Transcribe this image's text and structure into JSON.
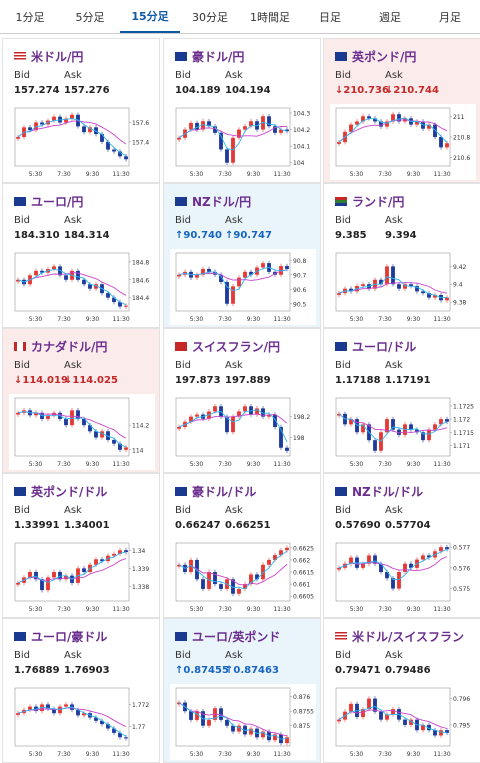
{
  "tabs": [
    {
      "label": "1分足",
      "active": false
    },
    {
      "label": "5分足",
      "active": false
    },
    {
      "label": "15分足",
      "active": true
    },
    {
      "label": "30分足",
      "active": false
    },
    {
      "label": "1時間足",
      "active": false
    },
    {
      "label": "日足",
      "active": false
    },
    {
      "label": "週足",
      "active": false
    },
    {
      "label": "月足",
      "active": false
    }
  ],
  "labels": {
    "bid": "Bid",
    "ask": "Ask"
  },
  "colors": {
    "bull": "#e53935",
    "bear": "#1e3a9c",
    "avg": "#cc44cc",
    "short": "#29b6f6",
    "up_bg": "#eaf4fb",
    "down_bg": "#fbeceb"
  },
  "cards": [
    {
      "pair": "米ドル/円",
      "flag": "us-flag-icon",
      "bid": "157.274",
      "ask": "157.276",
      "trend": "none",
      "chart_data": {
        "type": "candlestick",
        "x_ticks": [
          "5:30",
          "7:30",
          "9:30",
          "11:30"
        ],
        "y_ticks": [
          "157.6",
          "157.4"
        ],
        "ylim": [
          157.15,
          157.75
        ],
        "path": [
          157.45,
          157.55,
          157.52,
          157.6,
          157.58,
          157.62,
          157.66,
          157.6,
          157.64,
          157.68,
          157.56,
          157.5,
          157.55,
          157.48,
          157.4,
          157.32,
          157.3,
          157.25,
          157.22
        ]
      }
    },
    {
      "pair": "豪ドル/円",
      "flag": "au-flag-icon",
      "bid": "104.189",
      "ask": "104.194",
      "trend": "none",
      "chart_data": {
        "type": "candlestick",
        "x_ticks": [
          "5:30",
          "7:30",
          "9:30",
          "11:30"
        ],
        "y_ticks": [
          "104.3",
          "104.2",
          "104.1",
          "104"
        ],
        "ylim": [
          103.98,
          104.33
        ],
        "path": [
          104.15,
          104.2,
          104.24,
          104.2,
          104.25,
          104.22,
          104.18,
          104.08,
          104.0,
          104.15,
          104.2,
          104.22,
          104.25,
          104.2,
          104.28,
          104.22,
          104.18,
          104.2,
          104.19
        ]
      }
    },
    {
      "pair": "英ポンド/円",
      "flag": "gb-flag-icon",
      "bid": "↓210.736",
      "ask": "↓210.744",
      "trend": "down",
      "chart_data": {
        "type": "candlestick",
        "x_ticks": [
          "5:30",
          "7:30",
          "9:30",
          "11:30"
        ],
        "y_ticks": [
          "211",
          "210.8",
          "210.6"
        ],
        "ylim": [
          210.52,
          211.08
        ],
        "path": [
          210.75,
          210.85,
          210.92,
          210.95,
          211.0,
          210.98,
          210.95,
          210.9,
          210.95,
          211.02,
          210.95,
          210.98,
          210.92,
          210.95,
          210.88,
          210.92,
          210.8,
          210.7,
          210.74
        ]
      }
    },
    {
      "pair": "ユーロ/円",
      "flag": "eu-flag-icon",
      "bid": "184.310",
      "ask": "184.314",
      "trend": "none",
      "chart_data": {
        "type": "candlestick",
        "x_ticks": [
          "5:30",
          "7:30",
          "9:30",
          "11:30"
        ],
        "y_ticks": [
          "184.8",
          "184.6",
          "184.4"
        ],
        "ylim": [
          184.25,
          184.9
        ],
        "path": [
          184.6,
          184.55,
          184.65,
          184.7,
          184.68,
          184.72,
          184.75,
          184.65,
          184.6,
          184.7,
          184.6,
          184.55,
          184.5,
          184.55,
          184.45,
          184.4,
          184.35,
          184.3,
          184.31
        ]
      }
    },
    {
      "pair": "NZドル/円",
      "flag": "nz-flag-icon",
      "bid": "↑90.740",
      "ask": "↑90.747",
      "trend": "up",
      "chart_data": {
        "type": "candlestick",
        "x_ticks": [
          "5:30",
          "7:30",
          "9:30",
          "11:30"
        ],
        "y_ticks": [
          "90.8",
          "90.7",
          "90.6",
          "90.5"
        ],
        "ylim": [
          90.45,
          90.85
        ],
        "path": [
          90.7,
          90.72,
          90.68,
          90.7,
          90.74,
          90.72,
          90.7,
          90.65,
          90.5,
          90.62,
          90.68,
          90.72,
          90.7,
          90.75,
          90.78,
          90.72,
          90.7,
          90.76,
          90.74
        ]
      }
    },
    {
      "pair": "ランド/円",
      "flag": "za-flag-icon",
      "bid": "9.385",
      "ask": "9.394",
      "trend": "none",
      "chart_data": {
        "type": "candlestick",
        "x_ticks": [
          "5:30",
          "7:30",
          "9:30",
          "11:30"
        ],
        "y_ticks": [
          "9.42",
          "9.4",
          "9.38"
        ],
        "ylim": [
          9.37,
          9.435
        ],
        "path": [
          9.39,
          9.395,
          9.392,
          9.398,
          9.4,
          9.395,
          9.405,
          9.4,
          9.42,
          9.4,
          9.395,
          9.4,
          9.398,
          9.392,
          9.39,
          9.385,
          9.388,
          9.382,
          9.385
        ]
      }
    },
    {
      "pair": "カナダドル/円",
      "flag": "ca-flag-icon",
      "bid": "↓114.019",
      "ask": "↓114.025",
      "trend": "down",
      "chart_data": {
        "type": "candlestick",
        "x_ticks": [
          "5:30",
          "7:30",
          "9:30",
          "11:30"
        ],
        "y_ticks": [
          "114.2",
          "114"
        ],
        "ylim": [
          113.95,
          114.42
        ],
        "path": [
          114.3,
          114.32,
          114.28,
          114.3,
          114.25,
          114.28,
          114.3,
          114.25,
          114.2,
          114.32,
          114.25,
          114.2,
          114.15,
          114.1,
          114.15,
          114.08,
          114.05,
          114.0,
          114.02
        ]
      }
    },
    {
      "pair": "スイスフラン/円",
      "flag": "ch-flag-icon",
      "bid": "197.873",
      "ask": "197.889",
      "trend": "none",
      "chart_data": {
        "type": "candlestick",
        "x_ticks": [
          "5:30",
          "7:30",
          "9:30",
          "11:30"
        ],
        "y_ticks": [
          "198.2",
          "198"
        ],
        "ylim": [
          197.82,
          198.38
        ],
        "path": [
          198.1,
          198.15,
          198.2,
          198.22,
          198.18,
          198.25,
          198.3,
          198.2,
          198.05,
          198.2,
          198.25,
          198.3,
          198.22,
          198.28,
          198.2,
          198.22,
          198.1,
          197.9,
          197.87
        ]
      }
    },
    {
      "pair": "ユーロ/ドル",
      "flag": "eu-us-flag-icon",
      "bid": "1.17188",
      "ask": "1.17191",
      "trend": "none",
      "chart_data": {
        "type": "candlestick",
        "x_ticks": [
          "5:30",
          "7:30",
          "9:30",
          "11:30"
        ],
        "y_ticks": [
          "1.1725",
          "1.172",
          "1.1715",
          "1.171"
        ],
        "ylim": [
          1.1706,
          1.1728
        ],
        "path": [
          1.1722,
          1.1718,
          1.172,
          1.1715,
          1.1718,
          1.1712,
          1.1708,
          1.1715,
          1.172,
          1.1716,
          1.1714,
          1.1718,
          1.1716,
          1.1715,
          1.1712,
          1.1716,
          1.1718,
          1.172,
          1.1719
        ]
      }
    },
    {
      "pair": "英ポンド/ドル",
      "flag": "gb-us-flag-icon",
      "bid": "1.33991",
      "ask": "1.34001",
      "trend": "none",
      "chart_data": {
        "type": "candlestick",
        "x_ticks": [
          "5:30",
          "7:30",
          "9:30",
          "11:30"
        ],
        "y_ticks": [
          "1.34",
          "1.339",
          "1.338"
        ],
        "ylim": [
          1.3372,
          1.3404
        ],
        "path": [
          1.3382,
          1.3385,
          1.3388,
          1.3384,
          1.3378,
          1.3385,
          1.3388,
          1.3384,
          1.3386,
          1.3382,
          1.339,
          1.3388,
          1.3392,
          1.3395,
          1.3394,
          1.3397,
          1.3398,
          1.34,
          1.3399
        ]
      }
    },
    {
      "pair": "豪ドル/ドル",
      "flag": "au-us-flag-icon",
      "bid": "0.66247",
      "ask": "0.66251",
      "trend": "none",
      "chart_data": {
        "type": "candlestick",
        "x_ticks": [
          "5:30",
          "7:30",
          "9:30",
          "11:30"
        ],
        "y_ticks": [
          "0.6625",
          "0.662",
          "0.6615",
          "0.661",
          "0.6605"
        ],
        "ylim": [
          0.6603,
          0.6627
        ],
        "path": [
          0.6618,
          0.6615,
          0.662,
          0.6612,
          0.6608,
          0.6615,
          0.661,
          0.6608,
          0.6612,
          0.6606,
          0.6608,
          0.661,
          0.6614,
          0.6612,
          0.6618,
          0.662,
          0.6622,
          0.6624,
          0.6625
        ]
      }
    },
    {
      "pair": "NZドル/ドル",
      "flag": "nz-us-flag-icon",
      "bid": "0.57690",
      "ask": "0.57704",
      "trend": "none",
      "chart_data": {
        "type": "candlestick",
        "x_ticks": [
          "5:30",
          "7:30",
          "9:30",
          "11:30"
        ],
        "y_ticks": [
          "0.577",
          "0.576",
          "0.575"
        ],
        "ylim": [
          0.5744,
          0.5772
        ],
        "path": [
          0.576,
          0.5762,
          0.5765,
          0.576,
          0.5762,
          0.5766,
          0.5762,
          0.5758,
          0.5755,
          0.575,
          0.5758,
          0.5762,
          0.576,
          0.5764,
          0.5766,
          0.5765,
          0.5768,
          0.577,
          0.5769
        ]
      }
    },
    {
      "pair": "ユーロ/豪ドル",
      "flag": "eu-au-flag-icon",
      "bid": "1.76889",
      "ask": "1.76903",
      "trend": "none",
      "chart_data": {
        "type": "candlestick",
        "x_ticks": [
          "5:30",
          "7:30",
          "9:30",
          "11:30"
        ],
        "y_ticks": [
          "1.772",
          "1.77"
        ],
        "ylim": [
          1.7682,
          1.7735
        ],
        "path": [
          1.7712,
          1.7715,
          1.7718,
          1.7714,
          1.772,
          1.7716,
          1.7712,
          1.7718,
          1.772,
          1.7715,
          1.771,
          1.7712,
          1.7708,
          1.7705,
          1.7702,
          1.7698,
          1.7694,
          1.769,
          1.7689
        ]
      }
    },
    {
      "pair": "ユーロ/英ポンド",
      "flag": "eu-gb-flag-icon",
      "bid": "↑0.87455",
      "ask": "↑0.87463",
      "trend": "up",
      "chart_data": {
        "type": "candlestick",
        "x_ticks": [
          "5:30",
          "7:30",
          "9:30",
          "11:30"
        ],
        "y_ticks": [
          "0.876",
          "0.8755",
          "0.875"
        ],
        "ylim": [
          0.8743,
          0.8763
        ],
        "path": [
          0.8758,
          0.8755,
          0.8752,
          0.8755,
          0.875,
          0.8752,
          0.8756,
          0.8752,
          0.875,
          0.8748,
          0.875,
          0.8747,
          0.8749,
          0.8746,
          0.8748,
          0.8745,
          0.8747,
          0.8744,
          0.8746
        ]
      }
    },
    {
      "pair": "米ドル/スイスフラン",
      "flag": "us-ch-flag-icon",
      "bid": "0.79471",
      "ask": "0.79486",
      "trend": "none",
      "chart_data": {
        "type": "candlestick",
        "x_ticks": [
          "5:30",
          "7:30",
          "9:30",
          "11:30"
        ],
        "y_ticks": [
          "0.796",
          "0.795"
        ],
        "ylim": [
          0.7942,
          0.7964
        ],
        "path": [
          0.7952,
          0.7955,
          0.7958,
          0.7953,
          0.7956,
          0.796,
          0.7955,
          0.7952,
          0.7954,
          0.7956,
          0.7952,
          0.795,
          0.7952,
          0.7948,
          0.795,
          0.7948,
          0.7946,
          0.7948,
          0.7947
        ]
      }
    }
  ]
}
